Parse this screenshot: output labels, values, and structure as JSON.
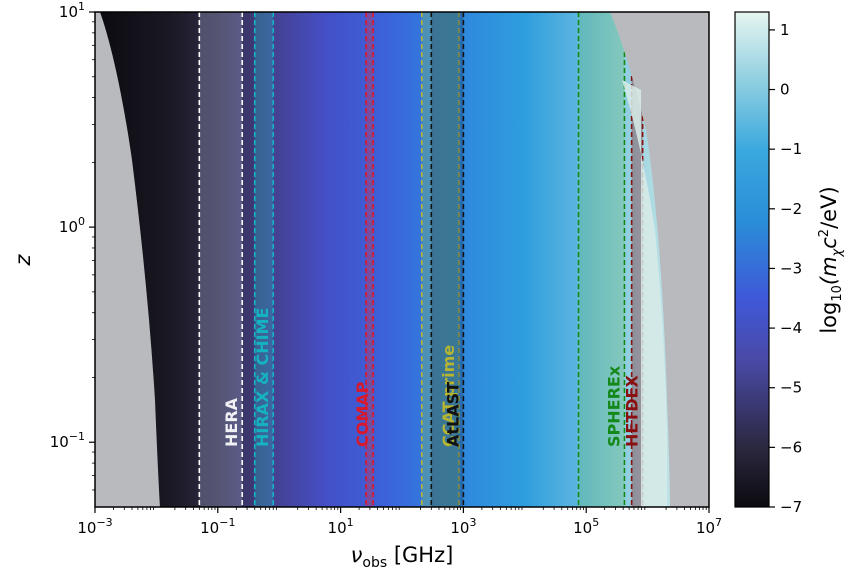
{
  "chart_data": {
    "type": "heatmap",
    "xlabel": "ν_obs [GHz]",
    "xlabel_main": "ν",
    "xlabel_sub": "obs",
    "xlabel_unit": " [GHz]",
    "ylabel": "z",
    "x_scale": "log",
    "y_scale": "log",
    "xlim": [
      0.001,
      10000000
    ],
    "ylim": [
      0.05,
      10
    ],
    "x_ticks": [
      {
        "value": 0.001,
        "base": "10",
        "exp": "−3"
      },
      {
        "value": 0.1,
        "base": "10",
        "exp": "−1"
      },
      {
        "value": 10,
        "base": "10",
        "exp": "1"
      },
      {
        "value": 1000,
        "base": "10",
        "exp": "3"
      },
      {
        "value": 100000,
        "base": "10",
        "exp": "5"
      },
      {
        "value": 10000000,
        "base": "10",
        "exp": "7"
      }
    ],
    "y_ticks": [
      {
        "value": 0.1,
        "base": "10",
        "exp": "−1"
      },
      {
        "value": 1,
        "base": "10",
        "exp": "0"
      },
      {
        "value": 10,
        "base": "10",
        "exp": "1"
      }
    ],
    "colorbar": {
      "label": "log₁₀((m_χc²/eV)",
      "label_main": "log",
      "label_sub": "10",
      "label_rest_1": "(m",
      "label_sub2": "χ",
      "label_rest_2": "c",
      "label_sup": "2",
      "label_rest_3": "/eV)",
      "range": [
        -7,
        1.3
      ],
      "ticks": [
        {
          "value": 1,
          "label": "1"
        },
        {
          "value": 0,
          "label": "0"
        },
        {
          "value": -1,
          "label": "−1"
        },
        {
          "value": -2,
          "label": "−2"
        },
        {
          "value": -3,
          "label": "−3"
        },
        {
          "value": -4,
          "label": "−4"
        },
        {
          "value": -5,
          "label": "−5"
        },
        {
          "value": -6,
          "label": "−6"
        },
        {
          "value": -7,
          "label": "−7"
        }
      ],
      "colors": [
        "#0b0a0f",
        "#2b2840",
        "#4a4aa8",
        "#3f58d8",
        "#2a8ed8",
        "#3aa8de",
        "#8fcfe0",
        "#e6f5f1"
      ]
    },
    "excluded_region_color": "#b9babd",
    "bands": [
      {
        "label": "HERA",
        "x_range": [
          0.05,
          0.25
        ],
        "color": "#ffffff",
        "fill": "#9da3c8",
        "label_color": "#f0f0f5"
      },
      {
        "label": "HIRAX & CHIME",
        "x_range": [
          0.4,
          0.8
        ],
        "color": "#12b8c8",
        "fill": "#2ab0c0",
        "label_color": "#15b3c2"
      },
      {
        "label": "COMAP",
        "x_range": [
          26,
          34
        ],
        "color": "#e0152a",
        "fill": "#e03040",
        "label_color": "#d8182c"
      },
      {
        "label": "CCAT-prime",
        "x_range": [
          210,
          850
        ],
        "color": "#b8b830",
        "fill": "#7fbf70",
        "label_color": "#b5b532"
      },
      {
        "label": "AtLAST",
        "x_range": [
          300,
          1000
        ],
        "color": "#111111",
        "fill": "#1f3a5a",
        "label_color": "#111111"
      },
      {
        "label": "SPHEREx",
        "x_range": [
          75000,
          420000
        ],
        "color": "#128a12",
        "fill": "#6fc07a",
        "label_color": "#15881a"
      },
      {
        "label": "HETDEX",
        "x_range": [
          550000,
          830000
        ],
        "color": "#8a0f0f",
        "fill": "#7a1a1a",
        "label_color": "#8a1010"
      }
    ]
  }
}
